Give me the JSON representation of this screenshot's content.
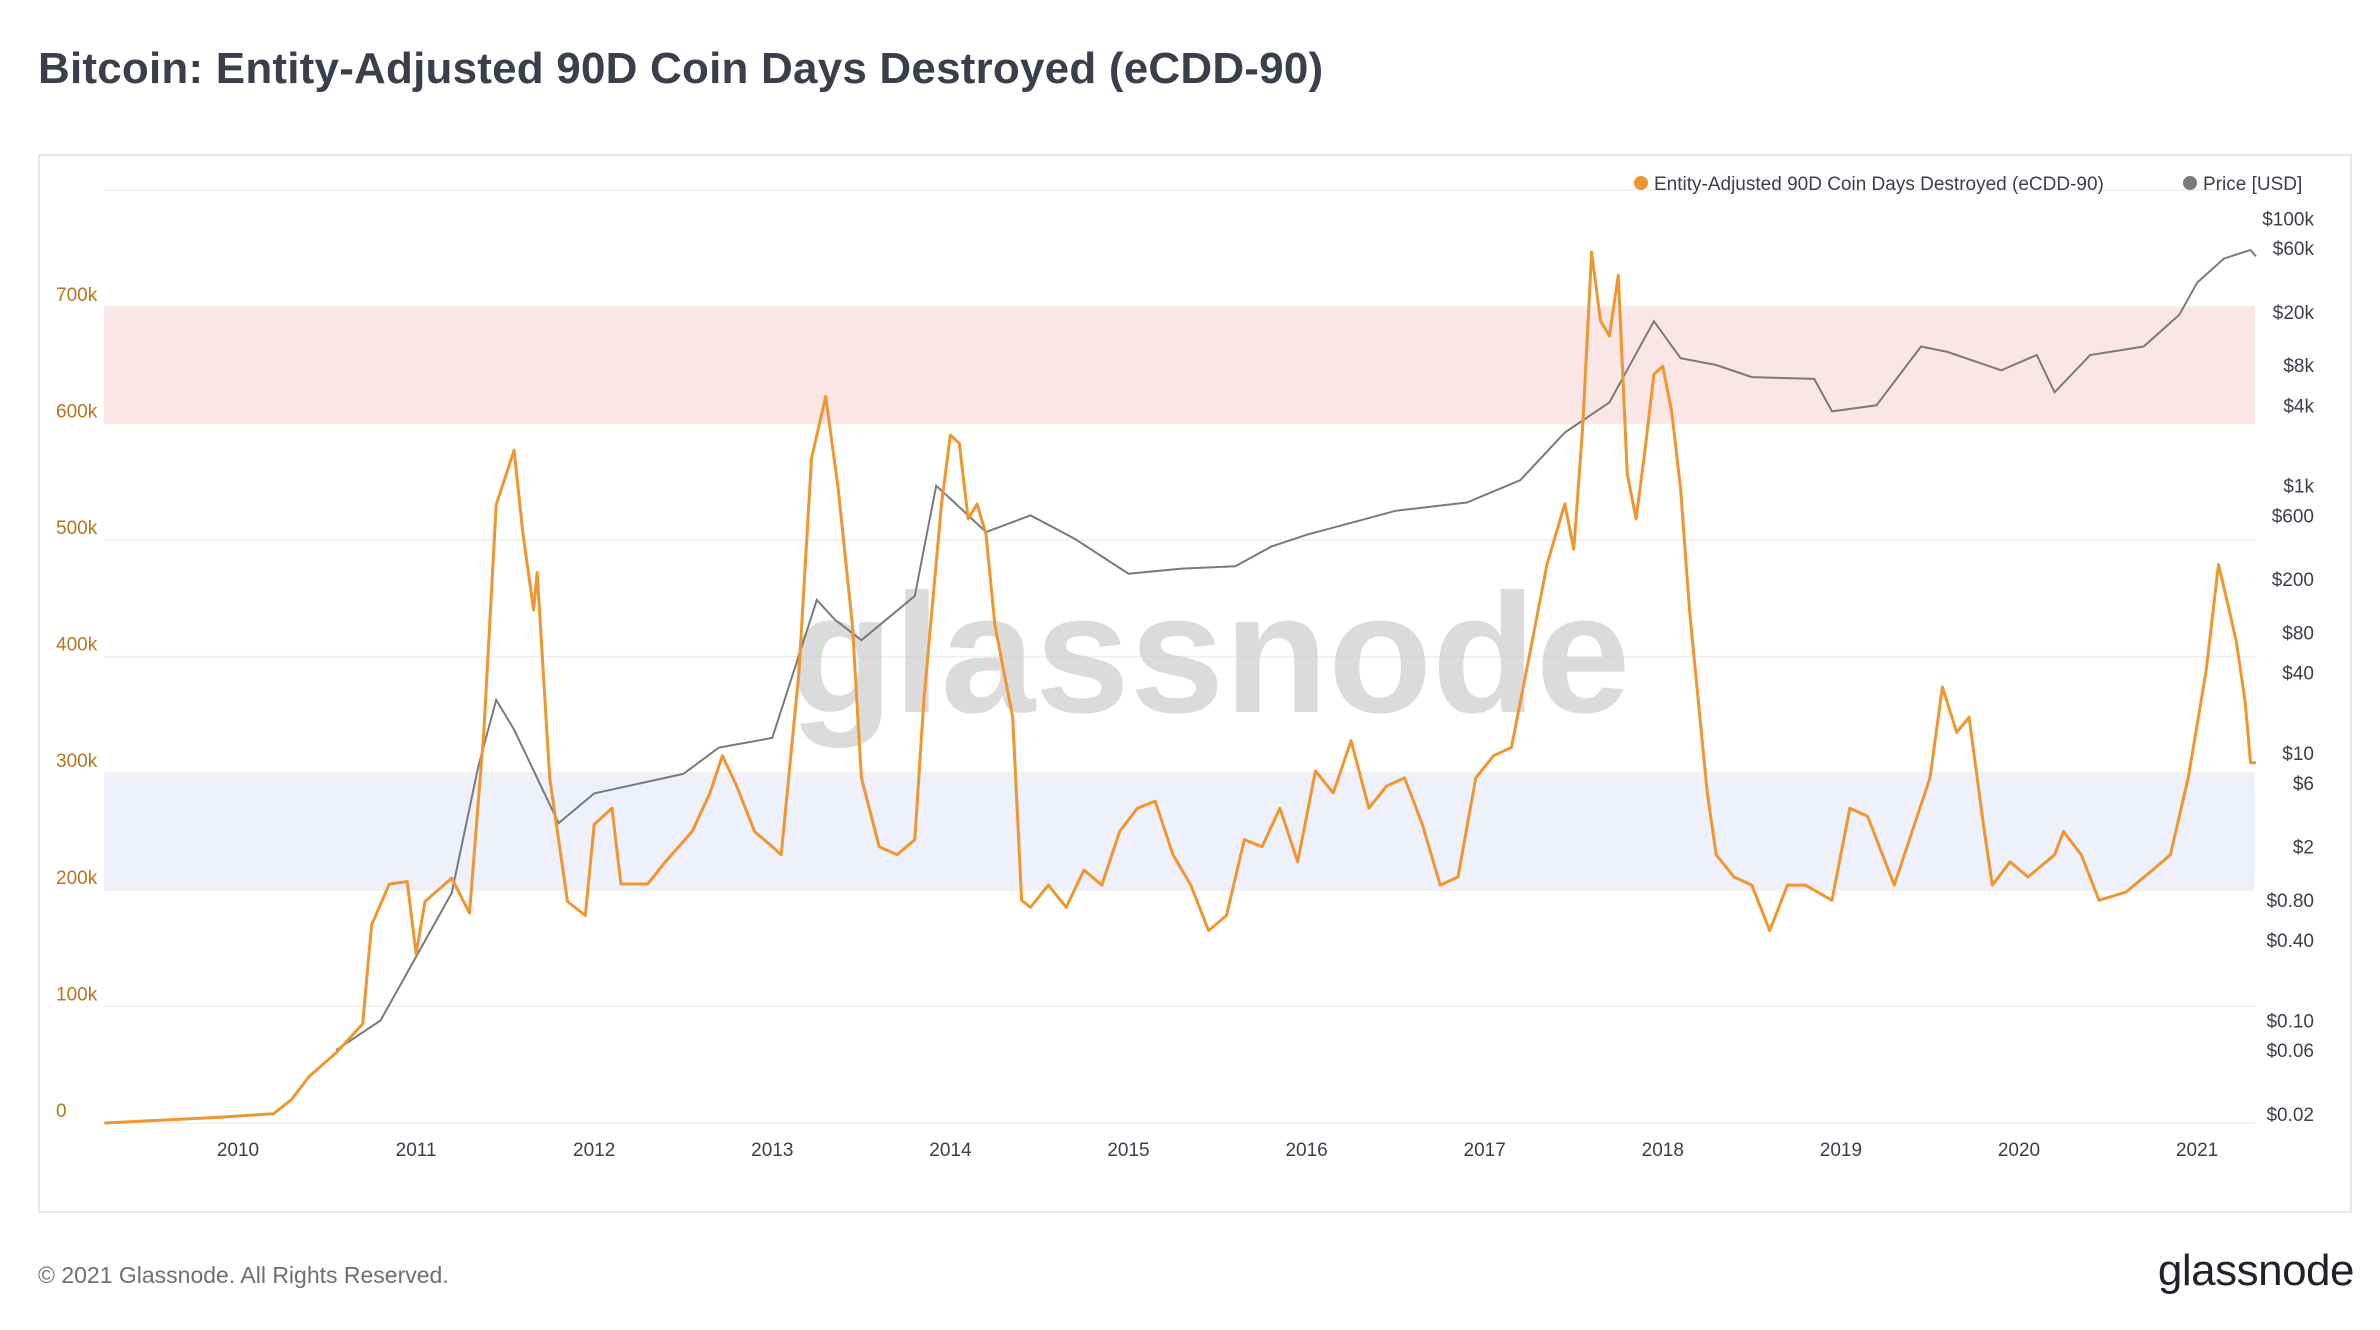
{
  "title": "Bitcoin: Entity-Adjusted 90D Coin Days Destroyed (eCDD-90)",
  "footer": {
    "copyright": "© 2021 Glassnode. All Rights Reserved.",
    "logo": "glassnode"
  },
  "watermark": "glassnode",
  "colors": {
    "ecdd": "#f0962f",
    "price": "#7a7a7a",
    "red_band": "#fae6e6",
    "blue_band": "#eef0fb",
    "left_axis": "#b4761e"
  },
  "chart_data": {
    "type": "line",
    "title": "Bitcoin: Entity-Adjusted 90D Coin Days Destroyed (eCDD-90)",
    "legend_position": "top-right",
    "grid": true,
    "x_ticks": [
      "2010",
      "2011",
      "2012",
      "2013",
      "2014",
      "2015",
      "2016",
      "2017",
      "2018",
      "2019",
      "2020",
      "2021"
    ],
    "xlim": [
      2009.25,
      2021.33
    ],
    "y_left": {
      "ticks": [
        "0",
        "100k",
        "200k",
        "300k",
        "400k",
        "500k",
        "600k",
        "700k"
      ],
      "tick_values": [
        0,
        100000,
        200000,
        300000,
        400000,
        500000,
        600000,
        700000
      ],
      "range": [
        0,
        800000
      ]
    },
    "y_right": {
      "scale": "log",
      "ticks": [
        "$100k",
        "$60k",
        "$20k",
        "$8k",
        "$4k",
        "$1k",
        "$600",
        "$200",
        "$80",
        "$40",
        "$10",
        "$6",
        "$2",
        "$0.80",
        "$0.40",
        "$0.10",
        "$0.06",
        "$0.02"
      ],
      "tick_values": [
        100000,
        60000,
        20000,
        8000,
        4000,
        1000,
        600,
        200,
        80,
        40,
        10,
        6,
        2,
        0.8,
        0.4,
        0.1,
        0.06,
        0.02
      ],
      "range": [
        0.02,
        100000
      ]
    },
    "bands": [
      {
        "from": 600000,
        "to": 700000,
        "color": "#fae6e6"
      },
      {
        "from": 200000,
        "to": 300000,
        "color": "#eef0fb"
      }
    ],
    "series": [
      {
        "name": "Entity-Adjusted 90D Coin Days Destroyed (eCDD-90)",
        "axis": "left",
        "color": "#f0962f",
        "x": [
          2009.25,
          2009.9,
          2010.2,
          2010.3,
          2010.4,
          2010.55,
          2010.7,
          2010.75,
          2010.85,
          2010.95,
          2011.0,
          2011.05,
          2011.2,
          2011.3,
          2011.38,
          2011.45,
          2011.55,
          2011.6,
          2011.66,
          2011.68,
          2011.75,
          2011.85,
          2011.95,
          2012.0,
          2012.1,
          2012.15,
          2012.3,
          2012.4,
          2012.55,
          2012.65,
          2012.72,
          2012.8,
          2012.9,
          2013.0,
          2013.05,
          2013.15,
          2013.22,
          2013.3,
          2013.37,
          2013.45,
          2013.5,
          2013.6,
          2013.7,
          2013.8,
          2013.85,
          2013.95,
          2014.0,
          2014.05,
          2014.1,
          2014.15,
          2014.2,
          2014.25,
          2014.35,
          2014.4,
          2014.45,
          2014.55,
          2014.65,
          2014.75,
          2014.85,
          2014.95,
          2015.05,
          2015.15,
          2015.25,
          2015.35,
          2015.45,
          2015.55,
          2015.65,
          2015.75,
          2015.85,
          2015.95,
          2016.05,
          2016.15,
          2016.25,
          2016.35,
          2016.45,
          2016.55,
          2016.65,
          2016.75,
          2016.85,
          2016.95,
          2017.05,
          2017.15,
          2017.25,
          2017.35,
          2017.45,
          2017.5,
          2017.55,
          2017.6,
          2017.65,
          2017.7,
          2017.75,
          2017.8,
          2017.85,
          2017.9,
          2017.95,
          2018.0,
          2018.05,
          2018.1,
          2018.15,
          2018.2,
          2018.25,
          2018.3,
          2018.4,
          2018.5,
          2018.6,
          2018.7,
          2018.8,
          2018.95,
          2019.05,
          2019.15,
          2019.3,
          2019.4,
          2019.5,
          2019.57,
          2019.65,
          2019.72,
          2019.8,
          2019.85,
          2019.95,
          2020.05,
          2020.2,
          2020.25,
          2020.35,
          2020.45,
          2020.6,
          2020.75,
          2020.85,
          2020.95,
          2021.05,
          2021.12,
          2021.18,
          2021.22,
          2021.27,
          2021.3,
          2021.33
        ],
        "values": [
          0,
          5000,
          8000,
          20000,
          40000,
          60000,
          85000,
          170000,
          205000,
          207000,
          145000,
          190000,
          210000,
          180000,
          335000,
          530000,
          577000,
          505000,
          440000,
          472000,
          296000,
          190000,
          178000,
          256000,
          270000,
          205000,
          205000,
          224000,
          250000,
          283000,
          315000,
          289000,
          250000,
          237000,
          230000,
          387000,
          570000,
          623000,
          544000,
          427000,
          296000,
          237000,
          230000,
          243000,
          361000,
          531000,
          590000,
          583000,
          518000,
          531000,
          505000,
          427000,
          348000,
          191000,
          185000,
          204000,
          185000,
          217000,
          204000,
          250000,
          270000,
          276000,
          230000,
          204000,
          165000,
          178000,
          243000,
          237000,
          270000,
          224000,
          302000,
          283000,
          328000,
          270000,
          289000,
          296000,
          256000,
          204000,
          211000,
          296000,
          315000,
          322000,
          400000,
          479000,
          531000,
          492000,
          597000,
          747000,
          688000,
          675000,
          727000,
          557000,
          518000,
          577000,
          642000,
          649000,
          610000,
          544000,
          440000,
          361000,
          283000,
          230000,
          211000,
          204000,
          165000,
          204000,
          204000,
          191000,
          270000,
          263000,
          204000,
          250000,
          296000,
          374000,
          335000,
          348000,
          256000,
          204000,
          224000,
          211000,
          230000,
          250000,
          230000,
          191000,
          198000,
          217000,
          230000,
          296000,
          387000,
          479000,
          440000,
          413000,
          361000,
          309000,
          309000
        ]
      },
      {
        "name": "Price [USD]",
        "axis": "right",
        "color": "#7a7a7a",
        "x": [
          2010.55,
          2010.8,
          2011.0,
          2011.2,
          2011.35,
          2011.45,
          2011.55,
          2011.8,
          2012.0,
          2012.5,
          2012.7,
          2013.0,
          2013.25,
          2013.35,
          2013.5,
          2013.8,
          2013.92,
          2014.0,
          2014.2,
          2014.45,
          2014.7,
          2015.0,
          2015.3,
          2015.6,
          2015.8,
          2016.0,
          2016.5,
          2016.9,
          2017.2,
          2017.45,
          2017.7,
          2017.95,
          2018.1,
          2018.3,
          2018.5,
          2018.85,
          2018.95,
          2019.2,
          2019.45,
          2019.6,
          2019.9,
          2020.1,
          2020.2,
          2020.4,
          2020.7,
          2020.9,
          2021.0,
          2021.15,
          2021.3,
          2021.33
        ],
        "values": [
          0.06,
          0.1,
          0.3,
          0.9,
          8,
          25,
          15,
          3,
          5,
          7,
          11,
          13,
          140,
          100,
          70,
          150,
          1000,
          800,
          450,
          600,
          400,
          220,
          240,
          250,
          350,
          430,
          650,
          750,
          1100,
          2500,
          4200,
          17000,
          9000,
          8000,
          6500,
          6300,
          3600,
          4000,
          11000,
          10000,
          7300,
          9500,
          5000,
          9500,
          11000,
          19000,
          33000,
          50000,
          58000,
          52000
        ]
      }
    ]
  }
}
